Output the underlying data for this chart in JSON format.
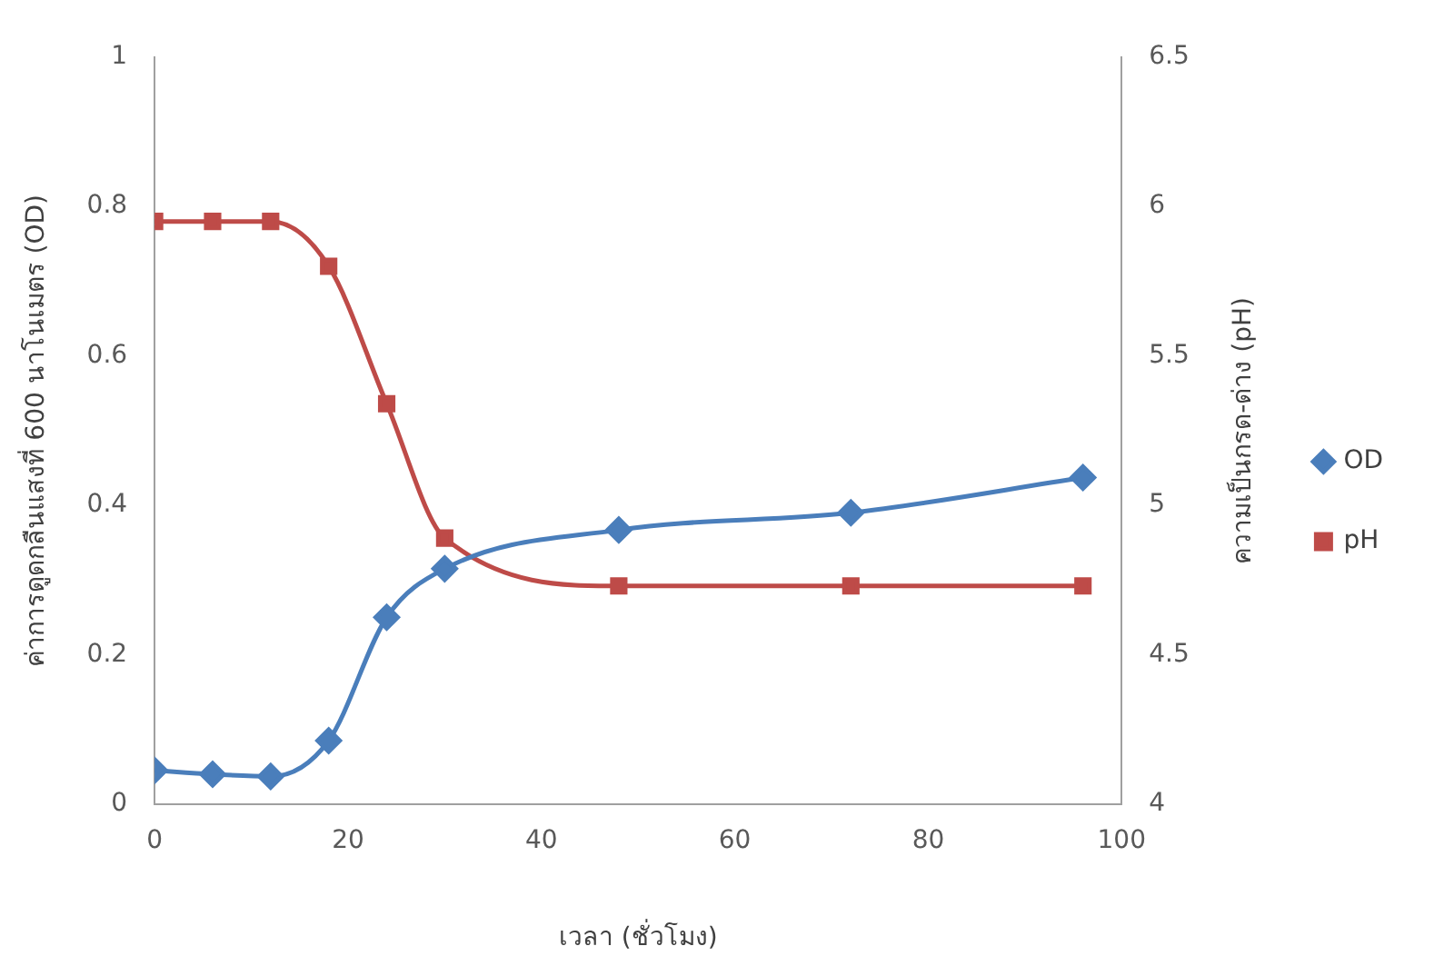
{
  "chart_data": {
    "type": "line",
    "xlabel": "เวลา (ชั่วโมง)",
    "ylabel": "ค่าการดูดกลืนแสงที่ 600 นาโนเมตร (OD)",
    "y2label": "ความเป็นกรด-ด่าง (pH)",
    "x": [
      0,
      6,
      12,
      18,
      24,
      30,
      48,
      72,
      96
    ],
    "series": [
      {
        "name": "OD",
        "color": "#4a7ebb",
        "marker": "diamond",
        "values": [
          0.045,
          0.04,
          0.037,
          0.085,
          0.25,
          0.315,
          0.367,
          0.39,
          0.437
        ]
      },
      {
        "name": "pH",
        "color": "#be4b48",
        "marker": "square",
        "axis": "y2",
        "values": [
          5.95,
          5.95,
          5.95,
          5.8,
          5.34,
          4.89,
          4.73,
          4.73,
          4.73
        ]
      }
    ],
    "xlim": [
      0,
      100
    ],
    "xticks": [
      0,
      20,
      40,
      60,
      80,
      100
    ],
    "ylim": [
      0,
      1
    ],
    "yticks": [
      0,
      0.2,
      0.4,
      0.6,
      0.8,
      1
    ],
    "y2lim": [
      4,
      6.5
    ],
    "y2ticks": [
      4,
      4.5,
      5,
      5.5,
      6,
      6.5
    ],
    "grid": false,
    "legend": "right"
  }
}
